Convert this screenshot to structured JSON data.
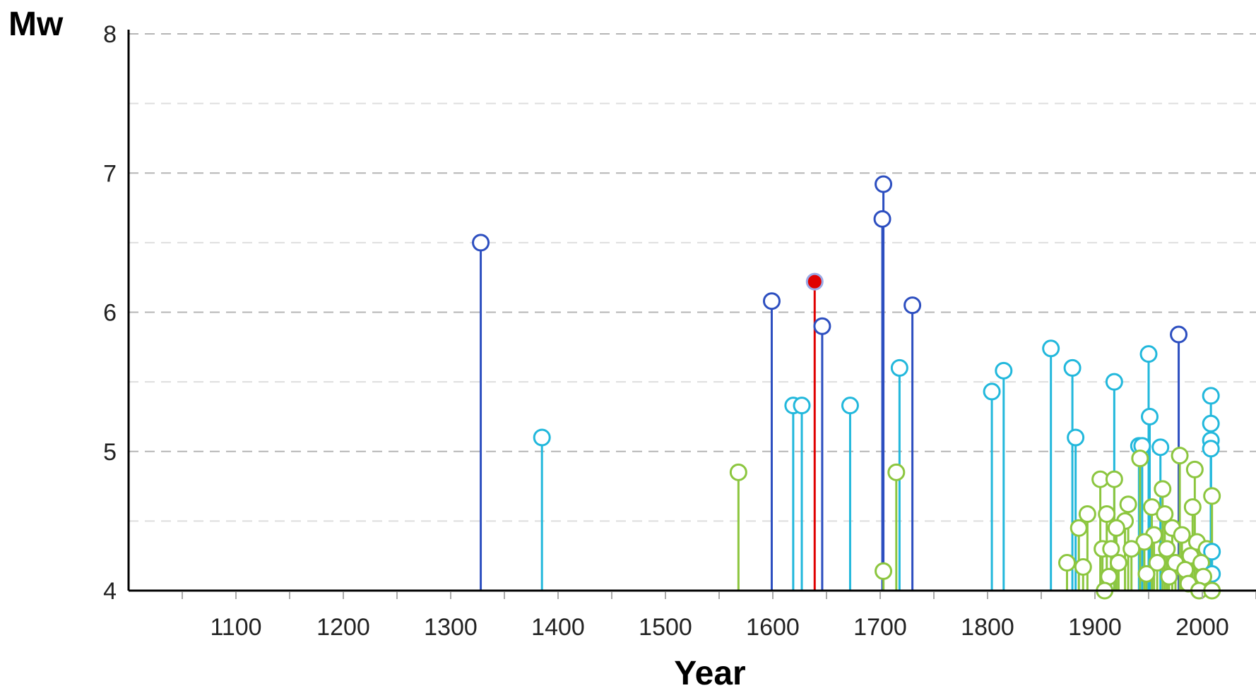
{
  "chart_data": {
    "type": "scatter",
    "style": "stem",
    "xlabel": "Year",
    "ylabel": "Mw",
    "xlim": [
      1000,
      2050
    ],
    "ylim": [
      4,
      8
    ],
    "x_ticks": [
      1100,
      1200,
      1300,
      1400,
      1500,
      1600,
      1700,
      1800,
      1900,
      2000
    ],
    "y_ticks": [
      4,
      5,
      6,
      7,
      8
    ],
    "grid": "horizontal-dashed",
    "colors": {
      "dark_blue": "#2d4fc0",
      "cyan": "#22b8dc",
      "green": "#8cc63f",
      "highlight": "#e00000"
    },
    "points": [
      {
        "x": 1328,
        "y": 6.5,
        "c": "dark_blue"
      },
      {
        "x": 1385,
        "y": 5.1,
        "c": "cyan"
      },
      {
        "x": 1568,
        "y": 4.85,
        "c": "green"
      },
      {
        "x": 1599,
        "y": 6.08,
        "c": "dark_blue"
      },
      {
        "x": 1619,
        "y": 5.33,
        "c": "cyan"
      },
      {
        "x": 1627,
        "y": 5.33,
        "c": "cyan"
      },
      {
        "x": 1639,
        "y": 6.22,
        "c": "highlight",
        "filled": true
      },
      {
        "x": 1646,
        "y": 5.9,
        "c": "dark_blue"
      },
      {
        "x": 1672,
        "y": 5.33,
        "c": "cyan"
      },
      {
        "x": 1702,
        "y": 6.67,
        "c": "dark_blue"
      },
      {
        "x": 1703,
        "y": 6.92,
        "c": "dark_blue"
      },
      {
        "x": 1703,
        "y": 4.14,
        "c": "green"
      },
      {
        "x": 1715,
        "y": 4.85,
        "c": "green"
      },
      {
        "x": 1718,
        "y": 5.6,
        "c": "cyan"
      },
      {
        "x": 1730,
        "y": 6.05,
        "c": "dark_blue"
      },
      {
        "x": 1804,
        "y": 5.43,
        "c": "cyan"
      },
      {
        "x": 1815,
        "y": 5.58,
        "c": "cyan"
      },
      {
        "x": 1859,
        "y": 5.74,
        "c": "cyan"
      },
      {
        "x": 1874,
        "y": 4.2,
        "c": "green"
      },
      {
        "x": 1879,
        "y": 5.6,
        "c": "cyan"
      },
      {
        "x": 1882,
        "y": 5.1,
        "c": "cyan"
      },
      {
        "x": 1885,
        "y": 4.45,
        "c": "green"
      },
      {
        "x": 1889,
        "y": 4.17,
        "c": "green"
      },
      {
        "x": 1893,
        "y": 4.55,
        "c": "green"
      },
      {
        "x": 1905,
        "y": 4.8,
        "c": "green"
      },
      {
        "x": 1907,
        "y": 4.3,
        "c": "green"
      },
      {
        "x": 1909,
        "y": 4.0,
        "c": "green"
      },
      {
        "x": 1911,
        "y": 4.55,
        "c": "green"
      },
      {
        "x": 1913,
        "y": 4.1,
        "c": "green"
      },
      {
        "x": 1915,
        "y": 4.3,
        "c": "green"
      },
      {
        "x": 1918,
        "y": 5.5,
        "c": "cyan"
      },
      {
        "x": 1918,
        "y": 4.8,
        "c": "green"
      },
      {
        "x": 1920,
        "y": 4.45,
        "c": "green"
      },
      {
        "x": 1922,
        "y": 4.2,
        "c": "green"
      },
      {
        "x": 1928,
        "y": 4.5,
        "c": "green"
      },
      {
        "x": 1931,
        "y": 4.62,
        "c": "green"
      },
      {
        "x": 1934,
        "y": 4.3,
        "c": "green"
      },
      {
        "x": 1941,
        "y": 5.04,
        "c": "cyan"
      },
      {
        "x": 1942,
        "y": 4.95,
        "c": "green"
      },
      {
        "x": 1944,
        "y": 5.04,
        "c": "cyan"
      },
      {
        "x": 1946,
        "y": 4.35,
        "c": "green"
      },
      {
        "x": 1948,
        "y": 4.12,
        "c": "green"
      },
      {
        "x": 1950,
        "y": 5.7,
        "c": "cyan"
      },
      {
        "x": 1951,
        "y": 5.25,
        "c": "cyan"
      },
      {
        "x": 1953,
        "y": 4.6,
        "c": "green"
      },
      {
        "x": 1955,
        "y": 4.4,
        "c": "green"
      },
      {
        "x": 1958,
        "y": 4.2,
        "c": "green"
      },
      {
        "x": 1961,
        "y": 5.03,
        "c": "cyan"
      },
      {
        "x": 1963,
        "y": 4.73,
        "c": "green"
      },
      {
        "x": 1965,
        "y": 4.55,
        "c": "green"
      },
      {
        "x": 1967,
        "y": 4.3,
        "c": "green"
      },
      {
        "x": 1969,
        "y": 4.1,
        "c": "green"
      },
      {
        "x": 1972,
        "y": 4.45,
        "c": "green"
      },
      {
        "x": 1975,
        "y": 4.2,
        "c": "green"
      },
      {
        "x": 1978,
        "y": 5.84,
        "c": "dark_blue"
      },
      {
        "x": 1979,
        "y": 4.97,
        "c": "green"
      },
      {
        "x": 1981,
        "y": 4.4,
        "c": "green"
      },
      {
        "x": 1984,
        "y": 4.15,
        "c": "green"
      },
      {
        "x": 1987,
        "y": 4.05,
        "c": "green"
      },
      {
        "x": 1989,
        "y": 4.25,
        "c": "green"
      },
      {
        "x": 1991,
        "y": 4.6,
        "c": "green"
      },
      {
        "x": 1993,
        "y": 4.87,
        "c": "green"
      },
      {
        "x": 1995,
        "y": 4.35,
        "c": "green"
      },
      {
        "x": 1997,
        "y": 4.0,
        "c": "green"
      },
      {
        "x": 1999,
        "y": 4.2,
        "c": "green"
      },
      {
        "x": 2001,
        "y": 4.1,
        "c": "green"
      },
      {
        "x": 2004,
        "y": 4.3,
        "c": "green"
      },
      {
        "x": 2008,
        "y": 5.4,
        "c": "cyan"
      },
      {
        "x": 2008,
        "y": 5.2,
        "c": "cyan"
      },
      {
        "x": 2008,
        "y": 5.08,
        "c": "cyan"
      },
      {
        "x": 2008,
        "y": 5.02,
        "c": "cyan"
      },
      {
        "x": 2009,
        "y": 4.28,
        "c": "cyan"
      },
      {
        "x": 2009,
        "y": 4.12,
        "c": "cyan"
      },
      {
        "x": 2009,
        "y": 4.68,
        "c": "green"
      },
      {
        "x": 2009,
        "y": 4.0,
        "c": "green"
      }
    ]
  }
}
